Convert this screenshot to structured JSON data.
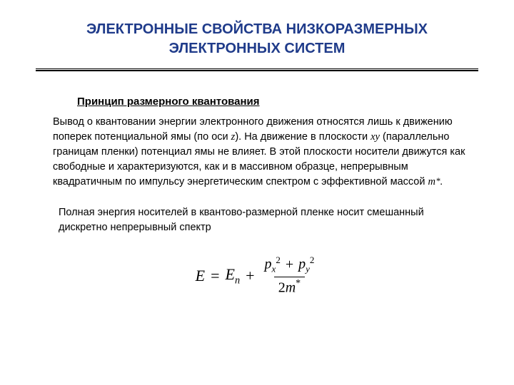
{
  "title_fontsize": "20px",
  "body_fontsize": "14.5px",
  "heading_fontsize": "15px",
  "title_color": "#1f3b8a",
  "text_color": "#000000",
  "background_color": "#ffffff",
  "title_line1": "ЭЛЕКТРОННЫЕ СВОЙСТВА НИЗКОРАЗМЕРНЫХ",
  "title_line2": "ЭЛЕКТРОННЫХ СИСТЕМ",
  "heading": "Принцип размерного квантования",
  "para1_part1": "Вывод о квантовании энергии электронного движения относятся лишь к движению поперек потенциальной ямы (по оси ",
  "para1_z": "z",
  "para1_part2": "). На движение в плоскости ",
  "para1_xy": "xy",
  "para1_part3": " (параллельно границам пленки) потенциал ямы не влияет. В этой плоскости носители движутся как свободные и характеризуются, как и в массивном образце, непрерывным квадратичным по импульсу энергетическим спектром с эффективной массой  ",
  "para1_mass_m": "m",
  "para1_mass_star": "*",
  "para1_part4": ".",
  "para2": "Полная энергия носителей в квантово-размерной пленке носит смешанный дискретно непрерывный спектр",
  "formula": {
    "E": "E",
    "eq": "=",
    "En_E": "E",
    "En_n": "n",
    "plus": "+",
    "p": "p",
    "x": "x",
    "y": "y",
    "two": "2",
    "m": "m",
    "star": "*",
    "sq": "2",
    "plus2": "+"
  }
}
